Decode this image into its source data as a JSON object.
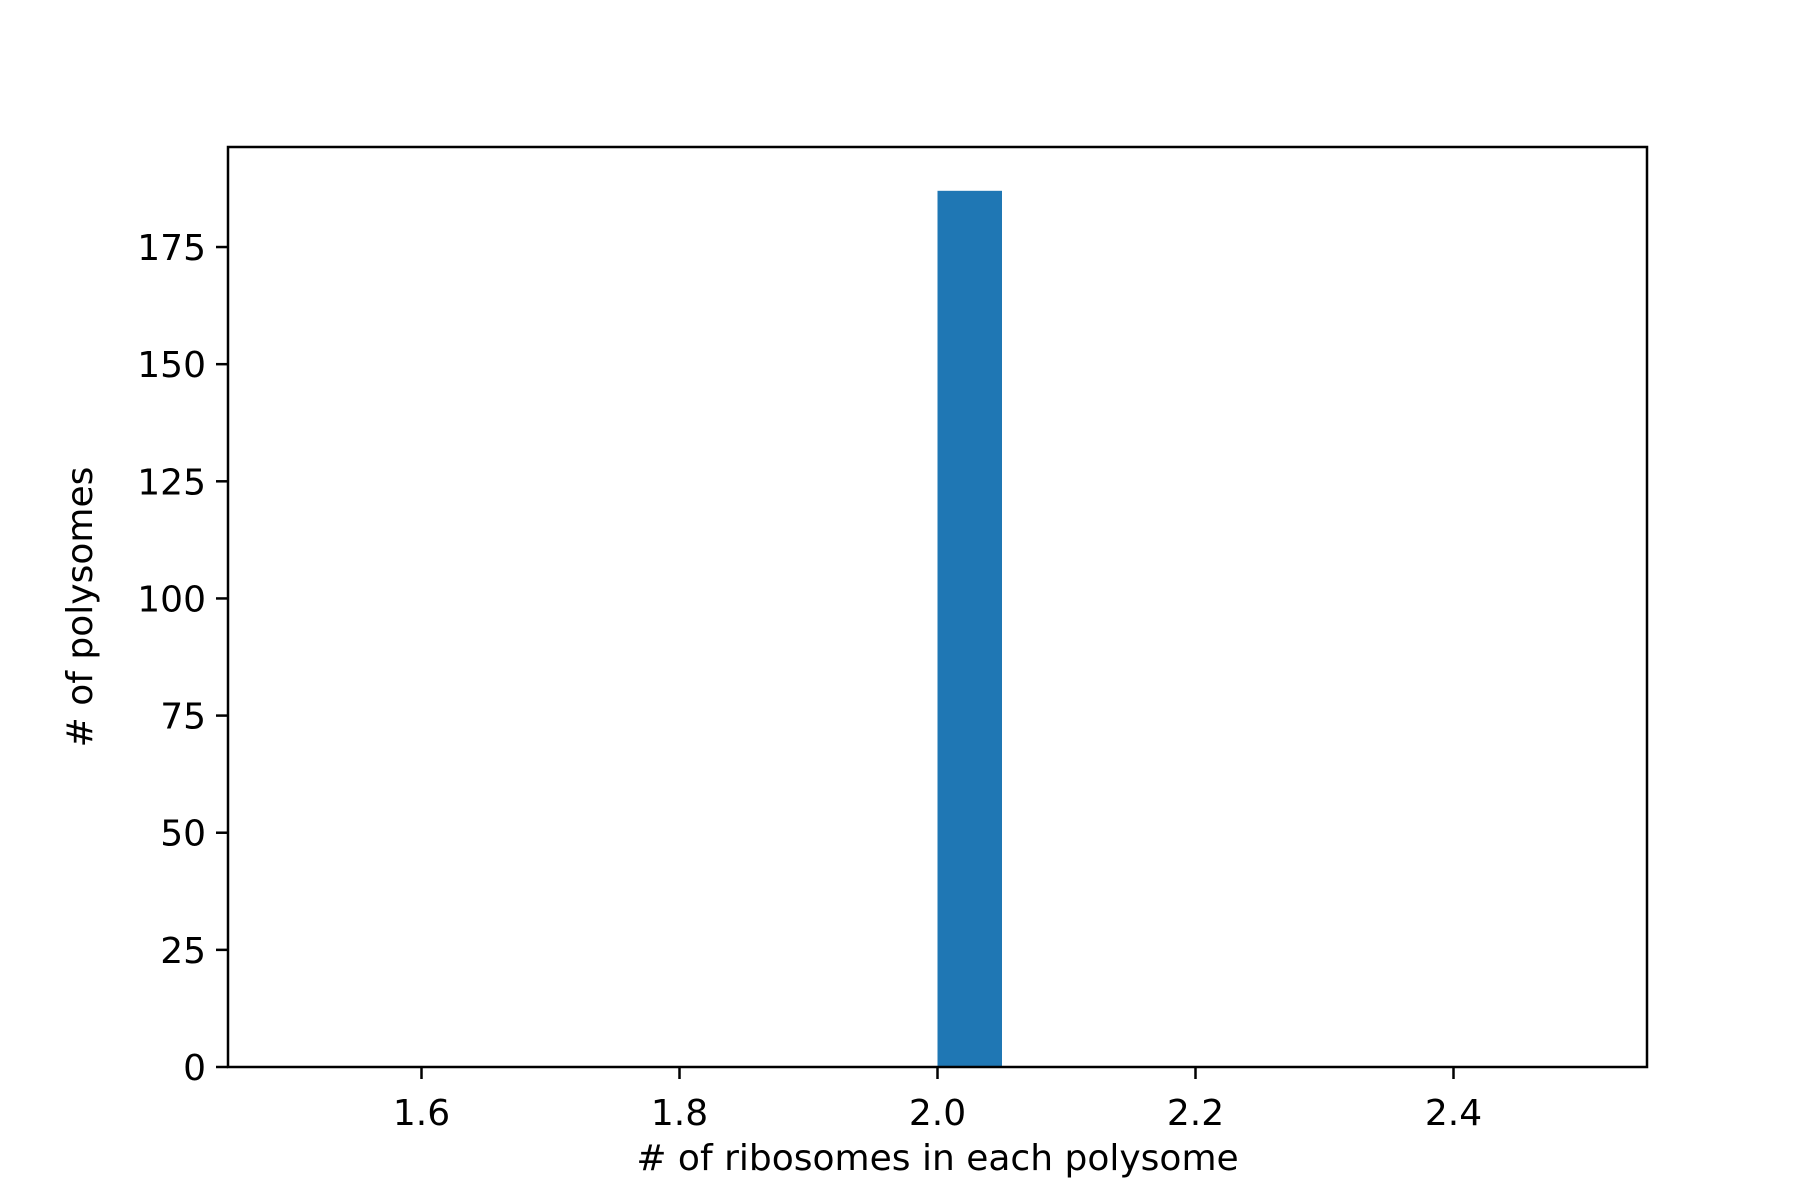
{
  "chart_data": {
    "type": "bar",
    "title": "",
    "xlabel": "# of ribosomes in each polysome",
    "ylabel": "# of polysomes",
    "xlim": [
      1.45,
      2.55
    ],
    "ylim": [
      0,
      196.35
    ],
    "xticks": [
      1.6,
      1.8,
      2.0,
      2.2,
      2.4
    ],
    "xtick_labels": [
      "1.6",
      "1.8",
      "2.0",
      "2.2",
      "2.4"
    ],
    "yticks": [
      0,
      25,
      50,
      75,
      100,
      125,
      150,
      175
    ],
    "ytick_labels": [
      "0",
      "25",
      "50",
      "75",
      "100",
      "125",
      "150",
      "175"
    ],
    "bars": [
      {
        "x_start": 2.0,
        "x_end": 2.05,
        "value": 187
      }
    ],
    "grid": false,
    "legend": "none",
    "colors": {
      "bar": "#1f77b4",
      "axes": "#000000",
      "background": "#ffffff"
    }
  }
}
